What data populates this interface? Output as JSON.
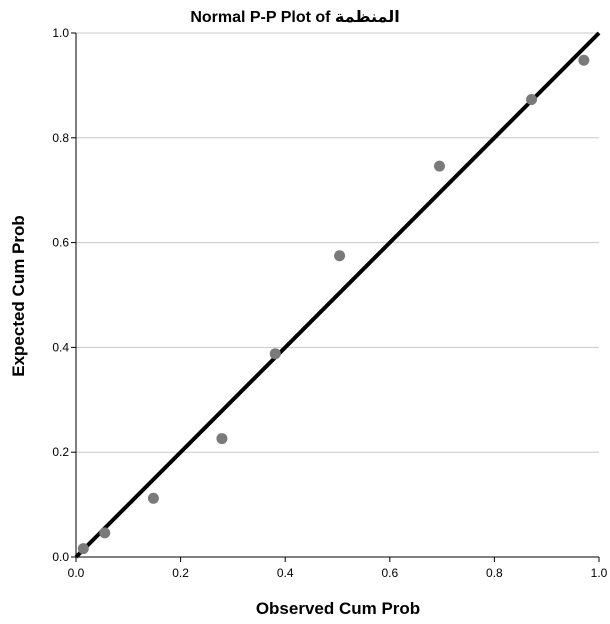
{
  "chart_data": {
    "type": "scatter",
    "title": "Normal P-P Plot of المنظمة",
    "xlabel": "Observed Cum Prob",
    "ylabel": "Expected Cum Prob",
    "xlim": [
      0.0,
      1.0
    ],
    "ylim": [
      0.0,
      1.0
    ],
    "x_ticks": [
      "0.0",
      "0.2",
      "0.4",
      "0.6",
      "0.8",
      "1.0"
    ],
    "y_ticks": [
      "0.0",
      "0.2",
      "0.4",
      "0.6",
      "0.8",
      "1.0"
    ],
    "grid": "horizontal",
    "reference_line": {
      "from": [
        0.0,
        0.0
      ],
      "to": [
        1.0,
        1.0
      ]
    },
    "points": [
      {
        "x": 0.014,
        "y": 0.016
      },
      {
        "x": 0.055,
        "y": 0.046
      },
      {
        "x": 0.148,
        "y": 0.112
      },
      {
        "x": 0.279,
        "y": 0.226
      },
      {
        "x": 0.381,
        "y": 0.388
      },
      {
        "x": 0.504,
        "y": 0.575
      },
      {
        "x": 0.695,
        "y": 0.746
      },
      {
        "x": 0.871,
        "y": 0.873
      },
      {
        "x": 0.971,
        "y": 0.948
      }
    ],
    "colors": {
      "points": "#7a7a7a",
      "reference_line": "#000000",
      "grid": "#c8c8c8",
      "axis": "#000000"
    }
  }
}
